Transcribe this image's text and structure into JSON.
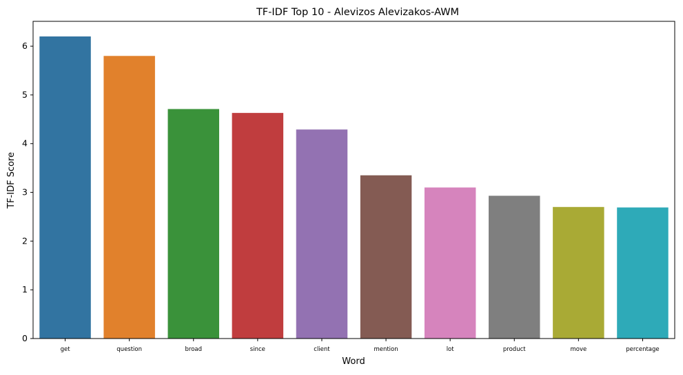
{
  "chart_data": {
    "type": "bar",
    "title": "TF-IDF Top 10 - Alevizos Alevizakos-AWM",
    "xlabel": "Word",
    "ylabel": "TF-IDF Score",
    "categories": [
      "get",
      "question",
      "broad",
      "since",
      "client",
      "mention",
      "lot",
      "product",
      "move",
      "percentage"
    ],
    "values": [
      6.2,
      5.8,
      4.71,
      4.63,
      4.29,
      3.35,
      3.1,
      2.93,
      2.7,
      2.69
    ],
    "colors": [
      "#3274a1",
      "#e1812c",
      "#3a923a",
      "#c03d3e",
      "#9372b2",
      "#845b53",
      "#d684bd",
      "#7f7f7f",
      "#a9aa35",
      "#2eaab8"
    ],
    "ylim": [
      0,
      6.51
    ],
    "yticks": [
      0,
      1,
      2,
      3,
      4,
      5,
      6
    ],
    "grid": false,
    "legend": "none"
  }
}
